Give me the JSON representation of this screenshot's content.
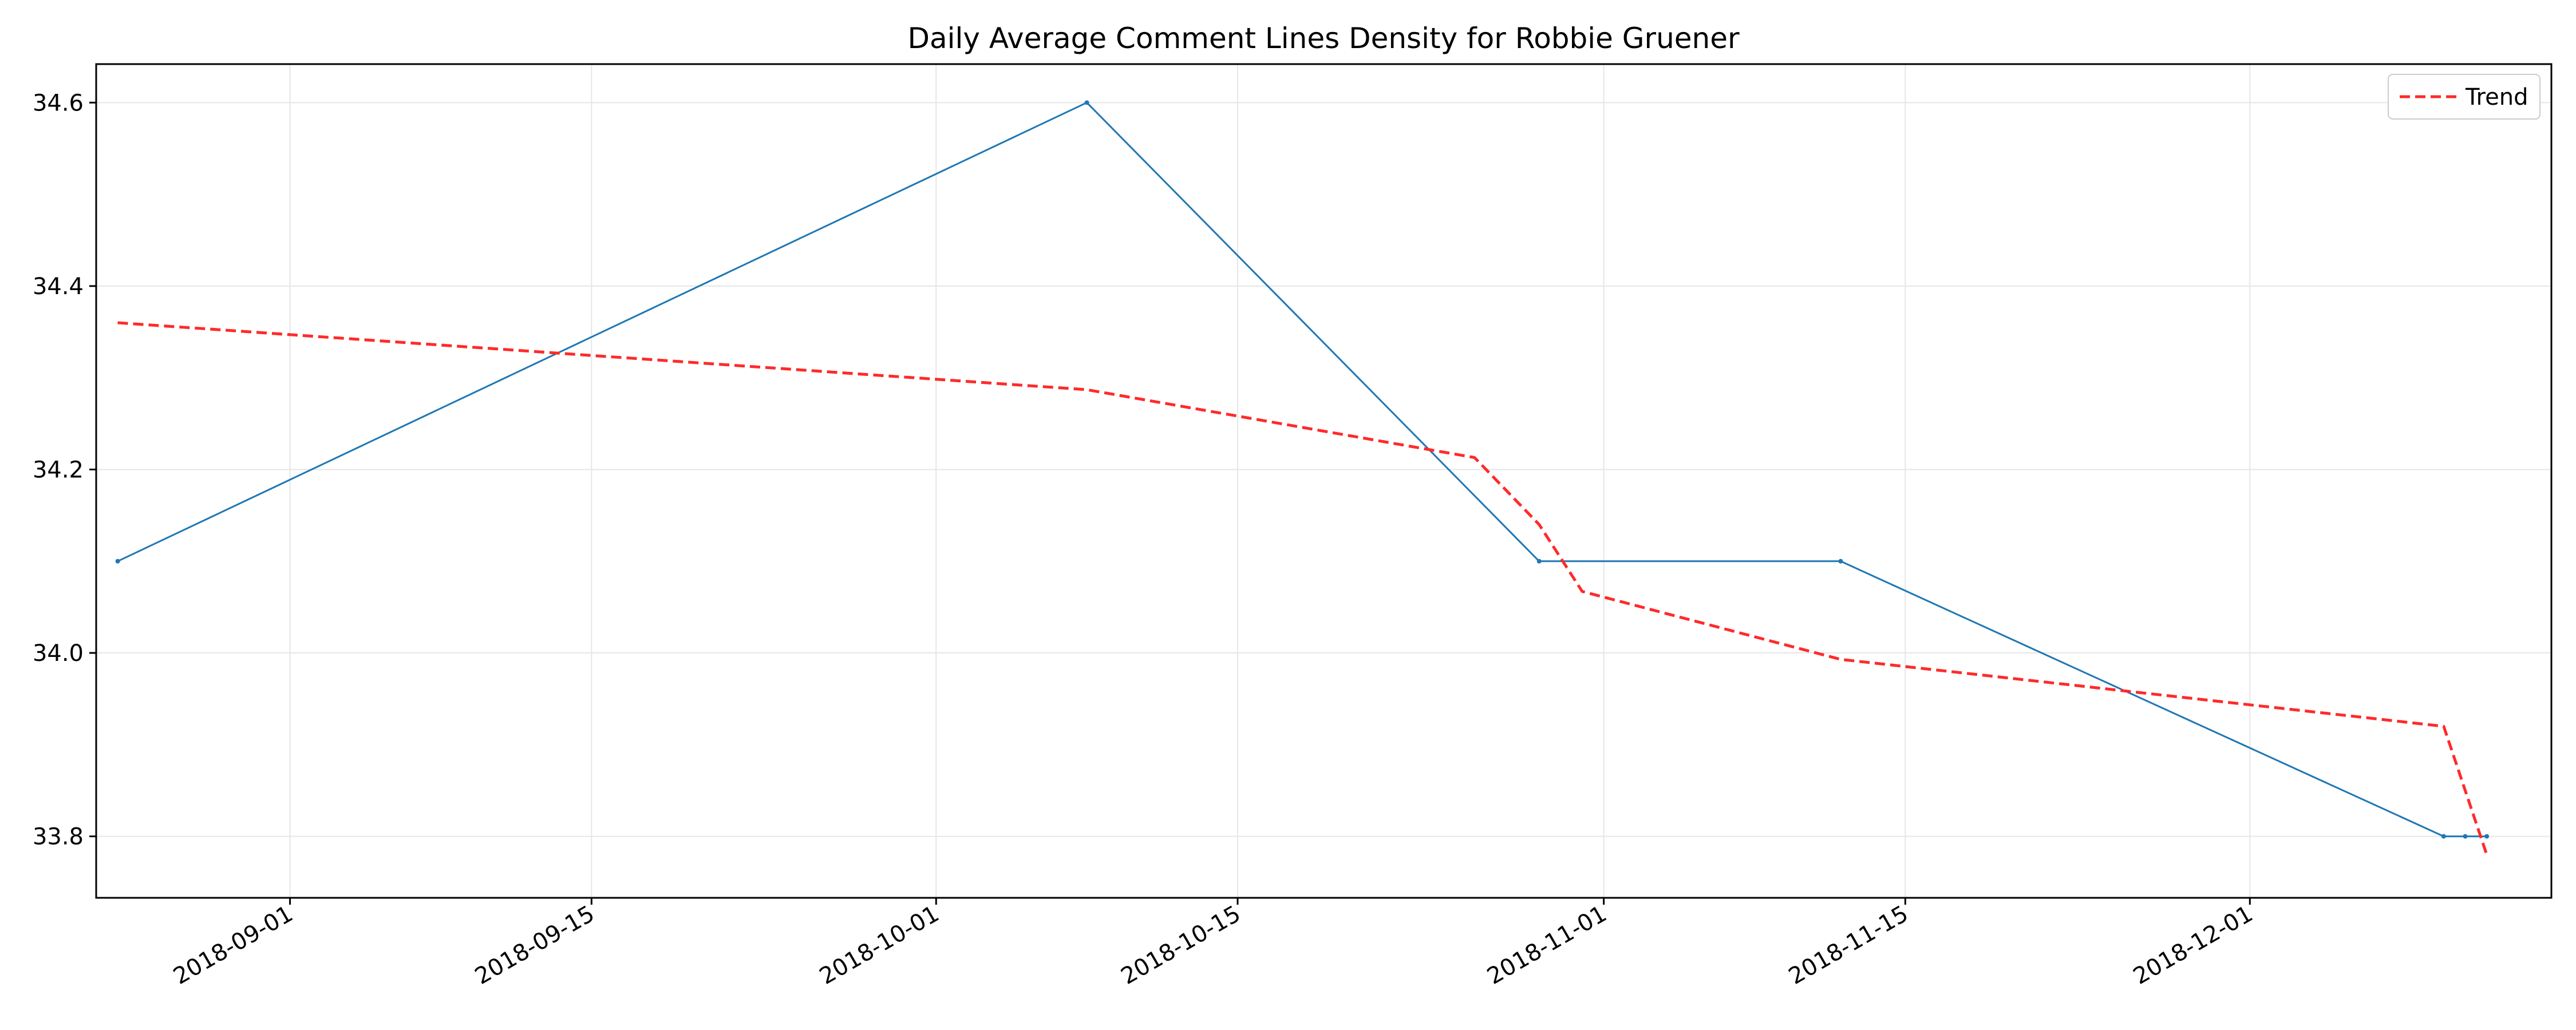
{
  "chart_data": {
    "type": "line",
    "title": "Daily Average Comment Lines Density for Robbie Gruener",
    "xlabel": "",
    "ylabel": "",
    "x_axis_type": "date",
    "xlim": [
      "2018-08-23",
      "2018-12-15"
    ],
    "ylim": [
      33.733,
      34.642
    ],
    "x_ticks": [
      "2018-09-01",
      "2018-09-15",
      "2018-10-01",
      "2018-10-15",
      "2018-11-01",
      "2018-11-15",
      "2018-12-01"
    ],
    "y_ticks": [
      33.8,
      34.0,
      34.2,
      34.4,
      34.6
    ],
    "y_tick_labels": [
      "33.8",
      "34.0",
      "34.2",
      "34.4",
      "34.6"
    ],
    "grid": true,
    "legend_position": "top-right",
    "series": [
      {
        "name": "",
        "color": "#1f77b4",
        "style": "solid",
        "points": [
          {
            "x": "2018-08-24",
            "y": 34.1
          },
          {
            "x": "2018-10-08",
            "y": 34.6
          },
          {
            "x": "2018-10-29",
            "y": 34.1
          },
          {
            "x": "2018-11-12",
            "y": 34.1
          },
          {
            "x": "2018-12-10",
            "y": 33.8
          },
          {
            "x": "2018-12-11",
            "y": 33.8
          },
          {
            "x": "2018-12-12",
            "y": 33.8
          }
        ]
      },
      {
        "name": "Trend",
        "color": "#ff2a2a",
        "style": "dashed",
        "points": [
          {
            "x": "2018-08-24",
            "y": 34.36
          },
          {
            "x": "2018-10-08",
            "y": 34.287
          },
          {
            "x": "2018-10-26",
            "y": 34.213
          },
          {
            "x": "2018-10-29",
            "y": 34.14
          },
          {
            "x": "2018-10-31",
            "y": 34.067
          },
          {
            "x": "2018-11-12",
            "y": 33.993
          },
          {
            "x": "2018-12-10",
            "y": 33.92
          },
          {
            "x": "2018-12-12",
            "y": 33.78
          }
        ]
      }
    ]
  }
}
